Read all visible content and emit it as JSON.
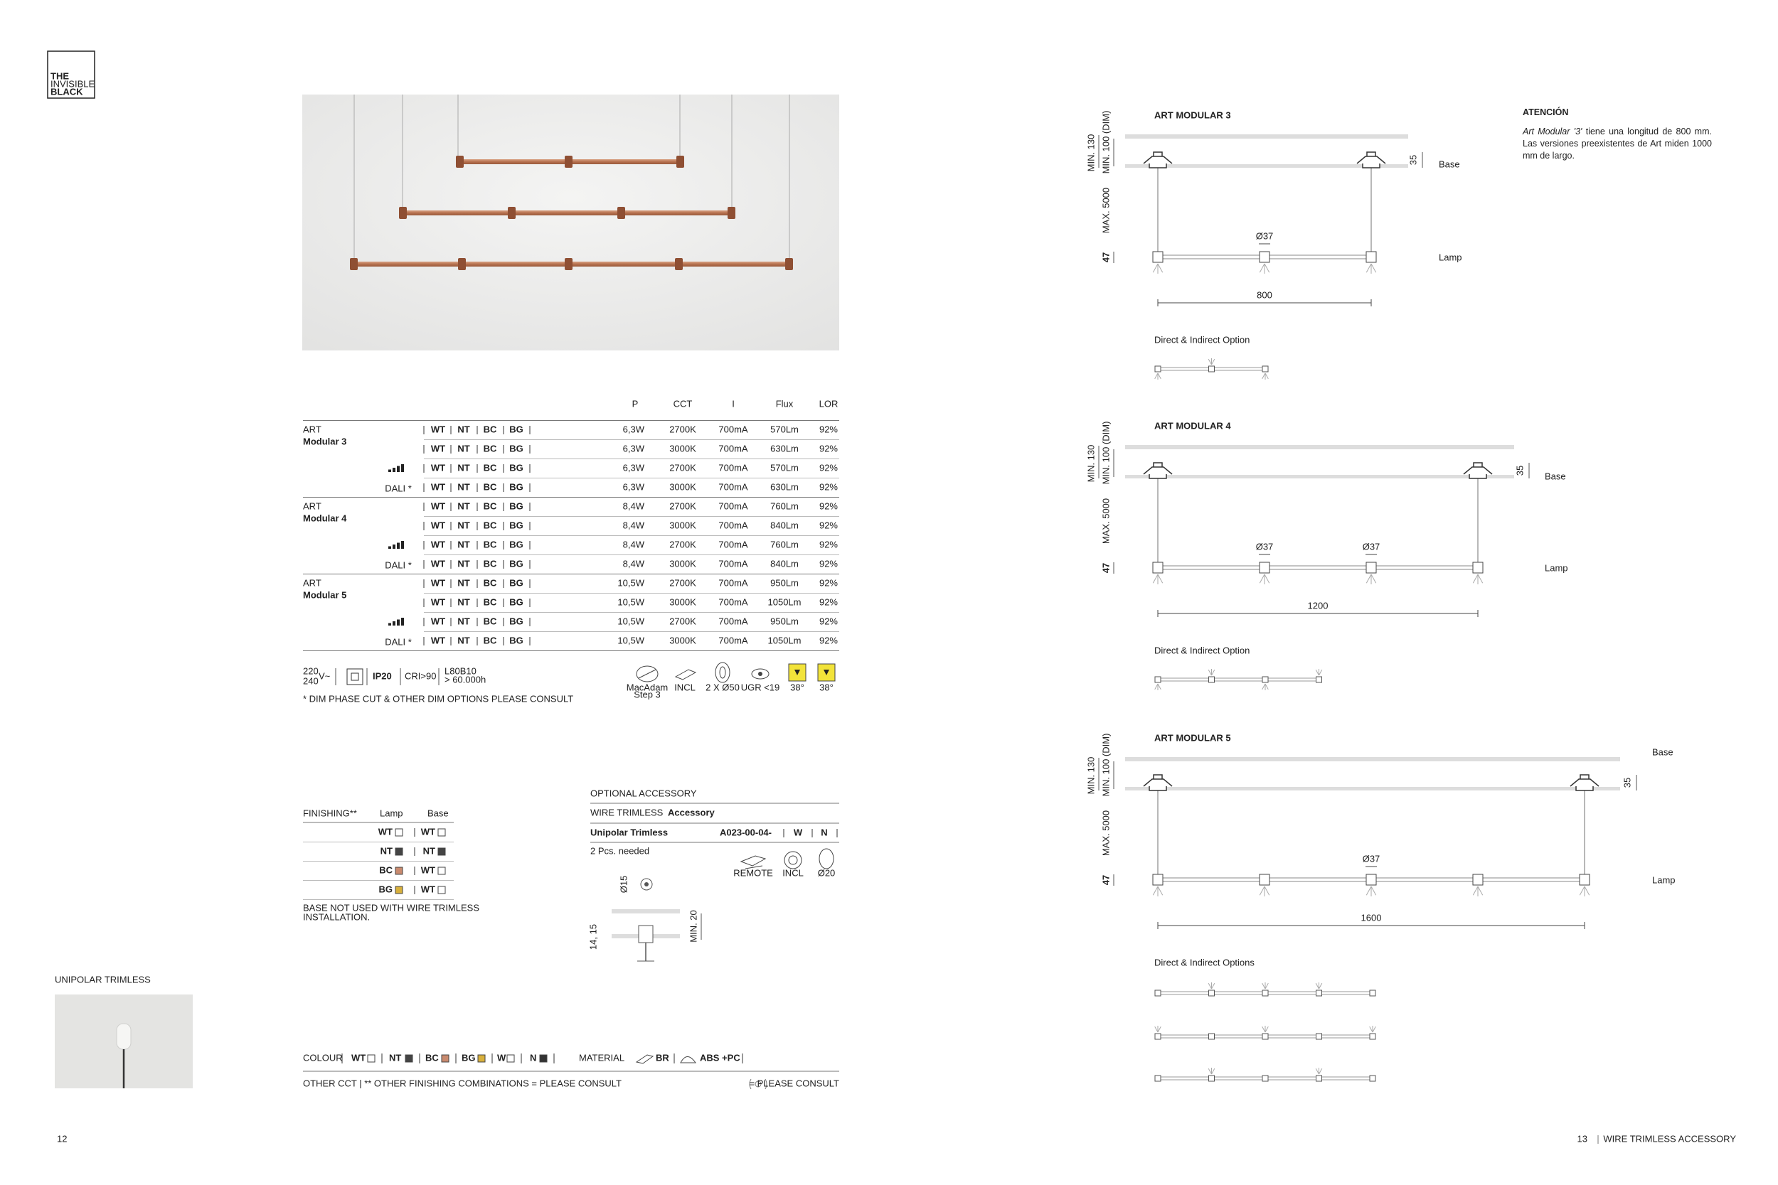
{
  "logo": {
    "lines": [
      "THE",
      "INVISIBLE",
      "BLACK"
    ]
  },
  "product_table": {
    "headers": [
      "P",
      "CCT",
      "I",
      "Flux",
      "LOR"
    ],
    "finishes": [
      "WT",
      "NT",
      "BC",
      "BG"
    ],
    "dali": "DALI *",
    "groups": [
      {
        "brand": "ART",
        "model": "Modular 3",
        "rows": [
          [
            "6,3W",
            "2700K",
            "700mA",
            "570Lm",
            "92%"
          ],
          [
            "6,3W",
            "3000K",
            "700mA",
            "630Lm",
            "92%"
          ],
          [
            "6,3W",
            "2700K",
            "700mA",
            "570Lm",
            "92%"
          ],
          [
            "6,3W",
            "3000K",
            "700mA",
            "630Lm",
            "92%"
          ]
        ]
      },
      {
        "brand": "ART",
        "model": "Modular 4",
        "rows": [
          [
            "8,4W",
            "2700K",
            "700mA",
            "760Lm",
            "92%"
          ],
          [
            "8,4W",
            "3000K",
            "700mA",
            "840Lm",
            "92%"
          ],
          [
            "8,4W",
            "2700K",
            "700mA",
            "760Lm",
            "92%"
          ],
          [
            "8,4W",
            "3000K",
            "700mA",
            "840Lm",
            "92%"
          ]
        ]
      },
      {
        "brand": "ART",
        "model": "Modular 5",
        "rows": [
          [
            "10,5W",
            "2700K",
            "700mA",
            "950Lm",
            "92%"
          ],
          [
            "10,5W",
            "3000K",
            "700mA",
            "1050Lm",
            "92%"
          ],
          [
            "10,5W",
            "2700K",
            "700mA",
            "950Lm",
            "92%"
          ],
          [
            "10,5W",
            "3000K",
            "700mA",
            "1050Lm",
            "92%"
          ]
        ]
      }
    ]
  },
  "specs": {
    "voltage": [
      "220",
      "240"
    ],
    "voltage_unit": "V~",
    "ip": "IP20",
    "cri": "CRI>90",
    "lifetime": [
      "L80B10",
      "> 60.000h"
    ],
    "icons": [
      "MacAdam",
      "Step 3",
      "INCL",
      "2 X Ø50",
      "UGR <19",
      "38°",
      "38°"
    ],
    "note": "* DIM PHASE CUT & OTHER DIM OPTIONS PLEASE CONSULT"
  },
  "finishing": {
    "title": "FINISHING**",
    "headers": [
      "Lamp",
      "Base"
    ],
    "rows": [
      {
        "lamp": "WT",
        "lamp_color": "#ffffff",
        "base": "WT",
        "base_color": "#ffffff"
      },
      {
        "lamp": "NT",
        "lamp_color": "#444444",
        "base": "NT",
        "base_color": "#444444"
      },
      {
        "lamp": "BC",
        "lamp_color": "#c98a6e",
        "base": "WT",
        "base_color": "#ffffff"
      },
      {
        "lamp": "BG",
        "lamp_color": "#d8b03c",
        "base": "WT",
        "base_color": "#ffffff"
      }
    ],
    "note": [
      "BASE NOT USED WITH WIRE TRIMLESS",
      "INSTALLATION."
    ]
  },
  "accessory": {
    "title": "OPTIONAL ACCESSORY",
    "subtitle": [
      "WIRE TRIMLESS",
      "Accessory"
    ],
    "name": "Unipolar Trimless",
    "code": "A023-00-04-",
    "options": [
      "W",
      "N"
    ],
    "note": "2 Pcs. needed",
    "icons": [
      "REMOTE",
      "INCL",
      "Ø20"
    ],
    "dims": [
      "Ø15",
      "14, 15",
      "MIN. 20"
    ]
  },
  "unipolar": {
    "title": "UNIPOLAR TRIMLESS"
  },
  "colour_bar": {
    "label": "COLOUR",
    "colours": [
      {
        "code": "WT",
        "color": "#ffffff"
      },
      {
        "code": "NT",
        "color": "#444444"
      },
      {
        "code": "BC",
        "color": "#c98a6e"
      },
      {
        "code": "BG",
        "color": "#d8b03c"
      },
      {
        "code": "W",
        "color": "#ffffff"
      },
      {
        "code": "N",
        "color": "#333333"
      }
    ],
    "material_label": "MATERIAL",
    "materials": [
      "BR",
      "ABS +PC"
    ],
    "footnote": "OTHER CCT  |  ** OTHER FINISHING COMBINATIONS  = PLEASE CONSULT",
    "consult": "= PLEASE CONSULT"
  },
  "pages": {
    "left": "12",
    "right": "13",
    "right_title": "WIRE TRIMLESS ACCESSORY"
  },
  "attention": {
    "title": "ATENCIÓN",
    "italic": "Art Modular '3'",
    "text": " tiene una longitud de 800 mm. Las versiones preexistentes de Art miden 1000 mm de largo."
  },
  "diagrams": [
    {
      "title": "ART MODULAR 3",
      "min": "MIN. 130",
      "min_dim": "MIN. 100 (DIM)",
      "max": "MAX. 5000",
      "lamp_height": "47",
      "base_height": "35",
      "base": "Base",
      "lamp": "Lamp",
      "diameters": [
        "Ø37"
      ],
      "length": "800",
      "option_title": "Direct & Indirect Option"
    },
    {
      "title": "ART MODULAR 4",
      "min": "MIN. 130",
      "min_dim": "MIN. 100 (DIM)",
      "max": "MAX. 5000",
      "lamp_height": "47",
      "base_height": "35",
      "base": "Base",
      "lamp": "Lamp",
      "diameters": [
        "Ø37",
        "Ø37"
      ],
      "length": "1200",
      "option_title": "Direct & Indirect Option"
    },
    {
      "title": "ART MODULAR 5",
      "min": "MIN. 130",
      "min_dim": "MIN. 100 (DIM)",
      "max": "MAX. 5000",
      "lamp_height": "47",
      "base_height": "35",
      "base": "Base",
      "lamp": "Lamp",
      "diameters": [
        "Ø37"
      ],
      "length": "1600",
      "option_title": "Direct & Indirect Options"
    }
  ]
}
